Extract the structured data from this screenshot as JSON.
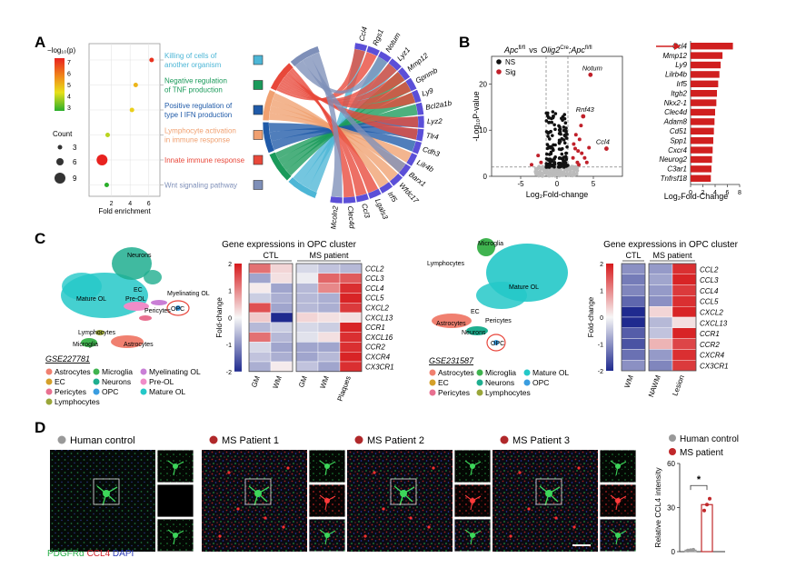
{
  "panels": {
    "A": "A",
    "B": "B",
    "C": "C",
    "D": "D"
  },
  "panel_a": {
    "legend_title": "−log₁₀(p)",
    "color_ticks": [
      "7",
      "6",
      "5",
      "4",
      "3"
    ],
    "count_title": "Count",
    "count_ticks": [
      "3",
      "6",
      "9"
    ],
    "x_label": "Fold enrichment",
    "x_ticks": [
      "2",
      "4",
      "6"
    ],
    "terms": [
      {
        "line1": "Killing of cells of",
        "line2": "another organism",
        "color": "#4db6d6",
        "fold": 6.3,
        "count": 3,
        "p": 6.8
      },
      {
        "line1": "Negative regulation",
        "line2": "of TNF production",
        "color": "#1a9a5a",
        "fold": 4.6,
        "count": 3,
        "p": 5.0
      },
      {
        "line1": "Positive regulation of",
        "line2": "type I IFN production",
        "color": "#1f5aa8",
        "fold": 4.2,
        "count": 3,
        "p": 4.6
      },
      {
        "line1": "Lymphocyte activation",
        "line2": "in immune response",
        "color": "#f0a070",
        "fold": 1.6,
        "count": 3,
        "p": 4.0
      },
      {
        "line1": "Innate immune response",
        "line2": "",
        "color": "#e8483a",
        "fold": 1.0,
        "count": 9,
        "p": 7.0
      },
      {
        "line1": "Wnt signaling pathway",
        "line2": "",
        "color": "#7e8fb8",
        "fold": 1.5,
        "count": 3,
        "p": 3.0
      }
    ],
    "chord_genes": [
      "Ccl4",
      "Rgs1",
      "Notum",
      "Lyz1",
      "Mmp12",
      "Gpnmb",
      "Ly9",
      "Bcl2a1b",
      "Lyz2",
      "Tlr4",
      "Cdh3",
      "Lilr4b",
      "Barx1",
      "Wfdc17",
      "Irf5",
      "Lgals3",
      "Ccl3",
      "Clec4d",
      "Mcoln2"
    ]
  },
  "panel_b": {
    "title_a": "Apc",
    "title_a_sup": "fl/fl",
    "title_vs": "vs",
    "title_b": "Olig2",
    "title_b_sup": "Cre",
    "title_c": ";Apc",
    "title_c_sup": "fl/fl",
    "legend": [
      "NS",
      "Sig"
    ],
    "y_label": "-Log₁₀P-value",
    "x_label": "Log₂Fold-change",
    "y_ticks": [
      "0",
      "10",
      "20"
    ],
    "x_ticks": [
      "-5",
      "0",
      "5"
    ],
    "labels": [
      {
        "name": "Notum",
        "x": 4.6,
        "y": 22
      },
      {
        "name": "Rnf43",
        "x": 3.6,
        "y": 13
      },
      {
        "name": "Ccl4",
        "x": 6.8,
        "y": 6
      }
    ],
    "bar_chart": {
      "type": "bar",
      "genes": [
        "Ccl4",
        "Mmp12",
        "Ly9",
        "Lilrb4b",
        "Irf5",
        "Itgb2",
        "Nkx2-1",
        "Clec4d",
        "Adam8",
        "Cd51",
        "Spp1",
        "Cxcr4",
        "Neurog2",
        "C3ar1",
        "Tnfrsf18"
      ],
      "values": [
        6.9,
        5.2,
        4.9,
        4.7,
        4.5,
        4.3,
        4.2,
        4.0,
        3.9,
        3.8,
        3.7,
        3.6,
        3.5,
        3.4,
        3.3
      ],
      "x_ticks": [
        "0",
        "2",
        "4",
        "6",
        "8"
      ],
      "x_label": "Log₂Fold-Change",
      "xlim": [
        0,
        8
      ]
    }
  },
  "panel_c": {
    "left": {
      "dataset": "GSE227781",
      "clusters": [
        "Neurons",
        "EC",
        "Pre-OL",
        "Myelinating OL",
        "Mature OL",
        "Pericytes",
        "OPC",
        "Lymphocytes",
        "Microglia",
        "Astrocytes"
      ],
      "legend": [
        {
          "label": "Astrocytes",
          "color": "#f08070"
        },
        {
          "label": "Microglia",
          "color": "#3fb34f"
        },
        {
          "label": "Myelinating OL",
          "color": "#c97fd6"
        },
        {
          "label": "EC",
          "color": "#d4a02a"
        },
        {
          "label": "Neurons",
          "color": "#1fae8f"
        },
        {
          "label": "Pre-OL",
          "color": "#f08cc8"
        },
        {
          "label": "Pericytes",
          "color": "#e87090"
        },
        {
          "label": "OPC",
          "color": "#3a9de0"
        },
        {
          "label": "Mature OL",
          "color": "#24c8c8"
        },
        {
          "label": "Lymphocytes",
          "color": "#9aa63a"
        }
      ],
      "heatmap_title": "Gene expressions in OPC cluster",
      "groups": [
        "CTL",
        "MS patient"
      ],
      "columns": [
        "GM",
        "WM",
        "GM",
        "WM",
        "Plaques"
      ],
      "genes": [
        "CCL2",
        "CCL3",
        "CCL4",
        "CCL5",
        "CXCL2",
        "CXCL13",
        "CCR1",
        "CXCL16",
        "CCR2",
        "CXCR4",
        "CX3CR1"
      ],
      "values": [
        [
          1.2,
          0.3,
          -0.3,
          -0.5,
          -0.6
        ],
        [
          -0.8,
          0.2,
          -0.1,
          1.3,
          1.4
        ],
        [
          0.1,
          -0.8,
          -0.6,
          1.0,
          1.8
        ],
        [
          -0.4,
          -0.7,
          -0.6,
          -0.7,
          1.9
        ],
        [
          1.5,
          -0.8,
          -0.6,
          -0.7,
          1.7
        ],
        [
          0.4,
          -2.0,
          0.3,
          0.2,
          0.2
        ],
        [
          -0.6,
          -0.4,
          -0.3,
          -0.4,
          1.9
        ],
        [
          1.2,
          -0.6,
          -0.2,
          0.2,
          1.8
        ],
        [
          -0.3,
          -0.8,
          -0.8,
          -0.8,
          1.8
        ],
        [
          -0.5,
          -0.7,
          -0.8,
          -0.6,
          1.9
        ],
        [
          -0.7,
          0.1,
          -0.5,
          -0.8,
          1.8
        ]
      ],
      "scale_ticks": [
        "2",
        "1",
        "0",
        "-1",
        "-2"
      ],
      "scale_label": "Fold-change"
    },
    "right": {
      "dataset": "GSE231587",
      "clusters": [
        "Microglia",
        "Lymphocytes",
        "Mature OL",
        "EC",
        "Pericytes",
        "Astrocytes",
        "Neurons",
        "OPC"
      ],
      "legend": [
        {
          "label": "Astrocytes",
          "color": "#f08070"
        },
        {
          "label": "Microglia",
          "color": "#3fb34f"
        },
        {
          "label": "Mature OL",
          "color": "#24c8c8"
        },
        {
          "label": "EC",
          "color": "#d4a02a"
        },
        {
          "label": "Neurons",
          "color": "#1fae8f"
        },
        {
          "label": "OPC",
          "color": "#3a9de0"
        },
        {
          "label": "Pericytes",
          "color": "#e87090"
        },
        {
          "label": "Lymphocytes",
          "color": "#9aa63a"
        }
      ],
      "heatmap_title": "Gene expressions in OPC cluster",
      "groups": [
        "CTL",
        "MS patient"
      ],
      "columns": [
        "WM",
        "NAWM",
        "Lesion"
      ],
      "genes": [
        "CCL2",
        "CCL3",
        "CCL4",
        "CCL5",
        "CXCL2",
        "CXCL13",
        "CCR1",
        "CCR2",
        "CXCR4",
        "CX3CR1"
      ],
      "values": [
        [
          -1.0,
          -0.9,
          1.8
        ],
        [
          -1.2,
          -0.8,
          1.9
        ],
        [
          -1.1,
          -0.9,
          1.7
        ],
        [
          -1.4,
          -1.0,
          1.8
        ],
        [
          -2.0,
          0.3,
          1.9
        ],
        [
          -2.0,
          -0.6,
          0.2
        ],
        [
          -1.5,
          -0.5,
          1.9
        ],
        [
          -1.6,
          0.6,
          1.6
        ],
        [
          -1.3,
          -0.9,
          1.8
        ],
        [
          -1.0,
          -1.1,
          1.7
        ]
      ],
      "scale_ticks": [
        "2",
        "1",
        "0",
        "-1",
        "-2"
      ],
      "scale_label": "Fold-change"
    }
  },
  "panel_d": {
    "labels": [
      "Human control",
      "MS Patient 1",
      "MS Patient 2",
      "MS Patient 3"
    ],
    "stain_1": "PDGFRα",
    "stain_2": "CCL4",
    "stain_3": "DAPI",
    "chart_data": {
      "type": "bar",
      "categories": [
        "Human control",
        "MS patient"
      ],
      "legend": [
        "Human control",
        "MS patient"
      ],
      "values": [
        1.0,
        32.0
      ],
      "points": [
        [
          0.8,
          1.0,
          1.3
        ],
        [
          28.0,
          32.0,
          36.0
        ]
      ],
      "ylabel": "Relative CCL4 intensity",
      "ylim": [
        0,
        60
      ],
      "y_ticks": [
        "0",
        "30",
        "60"
      ],
      "significance": "*",
      "colors": [
        "#999999",
        "#c0282a"
      ]
    }
  }
}
